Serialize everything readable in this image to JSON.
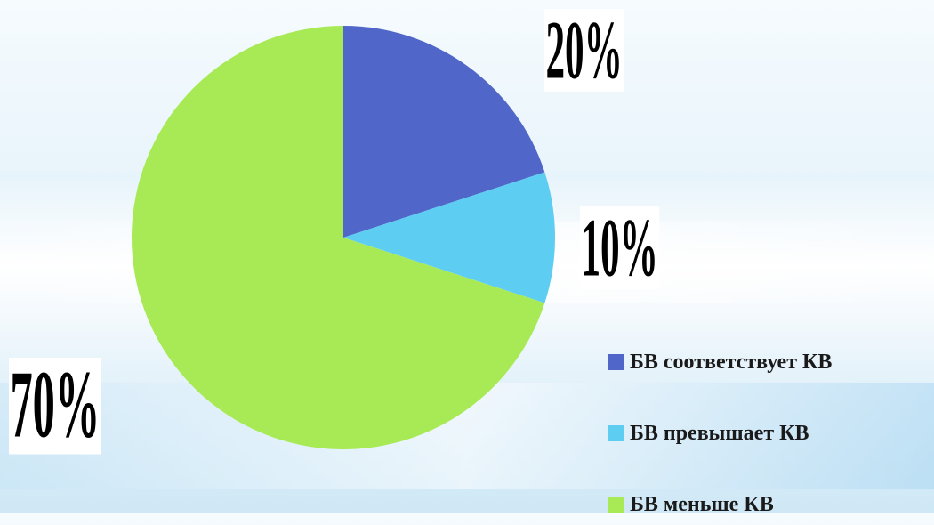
{
  "chart_data": {
    "type": "pie",
    "categories": [
      "БВ соответствует КВ",
      "БВ превышает КВ",
      "БВ меньше КВ"
    ],
    "values": [
      20,
      10,
      70
    ],
    "labels": [
      "20%",
      "10%",
      "70%"
    ],
    "colors": [
      "#5067c9",
      "#5ecdf2",
      "#a8ea55"
    ],
    "legend_position": "bottom-right",
    "start_angle": "top, clockwise"
  },
  "legend": {
    "items": [
      {
        "label": "БВ соответствует КВ",
        "color": "#5067c9"
      },
      {
        "label": "БВ превышает КВ",
        "color": "#5ecdf2"
      },
      {
        "label": "БВ меньше КВ",
        "color": "#a8ea55"
      }
    ]
  },
  "slice_labels": {
    "s0": "20%",
    "s1": "10%",
    "s2": "70%"
  }
}
